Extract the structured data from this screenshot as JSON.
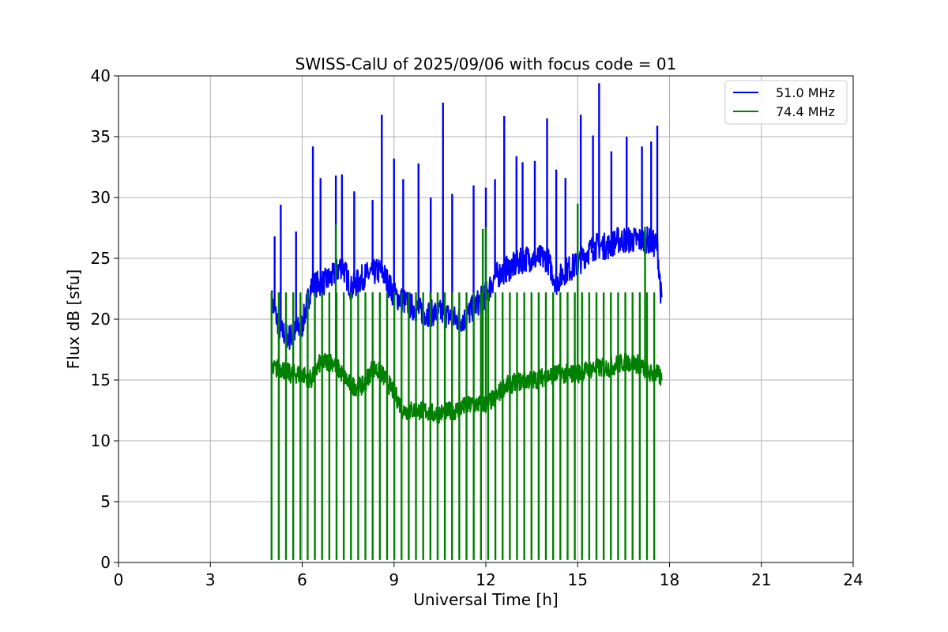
{
  "chart_data": {
    "type": "line",
    "title": "SWISS-CalU of 2025/09/06 with focus code = 01",
    "xlabel": "Universal Time [h]",
    "ylabel": "Flux dB [sfu]",
    "xlim": [
      0,
      24
    ],
    "ylim": [
      0,
      40
    ],
    "xticks": [
      0,
      3,
      6,
      9,
      12,
      15,
      18,
      21,
      24
    ],
    "yticks": [
      0,
      5,
      10,
      15,
      20,
      25,
      30,
      35,
      40
    ],
    "xtick_labels": [
      "0",
      "3",
      "6",
      "9",
      "12",
      "15",
      "18",
      "21",
      "24"
    ],
    "ytick_labels": [
      "0",
      "5",
      "10",
      "15",
      "20",
      "25",
      "30",
      "35",
      "40"
    ],
    "grid": true,
    "legend_position": "top-right",
    "series": [
      {
        "name": "51.0 MHz",
        "color": "#0000ff",
        "baseline_x": [
          5.0,
          5.3,
          5.6,
          6.0,
          6.3,
          6.7,
          7.0,
          7.3,
          7.6,
          8.0,
          8.3,
          8.6,
          9.0,
          9.3,
          9.6,
          10.0,
          10.3,
          10.6,
          11.0,
          11.3,
          11.6,
          12.0,
          12.3,
          12.6,
          13.0,
          13.3,
          13.6,
          14.0,
          14.3,
          14.6,
          15.0,
          15.3,
          15.6,
          16.0,
          16.3,
          16.6,
          17.0,
          17.3,
          17.6,
          17.75
        ],
        "baseline_y": [
          21.5,
          19.0,
          18.5,
          19.5,
          22.8,
          23.0,
          23.5,
          24.5,
          22.5,
          23.5,
          23.8,
          24.0,
          22.0,
          21.5,
          21.0,
          20.5,
          20.5,
          20.5,
          20.0,
          20.0,
          21.0,
          22.0,
          23.5,
          24.0,
          24.5,
          25.0,
          25.0,
          25.0,
          23.0,
          24.0,
          24.5,
          25.5,
          26.0,
          26.0,
          26.5,
          26.5,
          26.5,
          26.5,
          26.0,
          21.0
        ],
        "peaks_x": [
          5.1,
          5.3,
          5.8,
          6.35,
          6.6,
          7.1,
          7.3,
          7.7,
          8.3,
          8.6,
          9.0,
          9.3,
          9.8,
          10.2,
          10.6,
          10.9,
          11.6,
          12.0,
          12.3,
          12.6,
          13.0,
          13.2,
          13.6,
          14.0,
          14.3,
          14.6,
          15.1,
          15.5,
          15.7,
          16.1,
          16.6,
          17.1,
          17.4,
          17.6
        ],
        "peaks_y": [
          26.8,
          29.4,
          27.2,
          34.2,
          31.6,
          31.8,
          31.9,
          30.5,
          29.8,
          36.8,
          33.2,
          31.5,
          32.8,
          30.0,
          37.8,
          30.3,
          31.0,
          30.8,
          31.5,
          36.7,
          33.4,
          32.9,
          33.0,
          36.5,
          32.3,
          31.6,
          36.8,
          35.1,
          39.4,
          33.8,
          35.0,
          34.2,
          34.6,
          35.9
        ]
      },
      {
        "name": "74.4 MHz",
        "color": "#008000",
        "baseline_x": [
          5.0,
          5.3,
          5.6,
          6.0,
          6.3,
          6.6,
          7.0,
          7.3,
          7.6,
          8.0,
          8.3,
          8.6,
          9.0,
          9.3,
          9.6,
          10.0,
          10.3,
          10.6,
          11.0,
          11.3,
          11.6,
          12.0,
          12.3,
          12.6,
          13.0,
          13.3,
          13.6,
          14.0,
          14.3,
          14.6,
          15.0,
          15.3,
          15.6,
          16.0,
          16.3,
          16.6,
          17.0,
          17.3,
          17.6,
          17.75
        ],
        "baseline_y": [
          15.8,
          16.0,
          15.5,
          15.5,
          15.0,
          16.5,
          16.5,
          15.5,
          14.5,
          14.5,
          16.0,
          15.5,
          14.0,
          12.5,
          12.5,
          12.5,
          12.2,
          12.3,
          12.5,
          12.8,
          13.0,
          13.0,
          13.5,
          14.5,
          14.8,
          15.0,
          15.0,
          15.3,
          15.5,
          15.5,
          15.5,
          15.8,
          16.0,
          16.0,
          16.3,
          16.5,
          16.3,
          15.5,
          15.5,
          15.0
        ],
        "spike_count": 54,
        "spike_start": 5.0,
        "spike_end": 17.5,
        "spike_top": 22.2,
        "spike_bottom": 0.2,
        "peaks_x": [
          7.1,
          11.9,
          12.0,
          15.0,
          17.2
        ],
        "peaks_y": [
          27.8,
          27.4,
          27.6,
          29.5,
          27.6
        ]
      }
    ]
  }
}
